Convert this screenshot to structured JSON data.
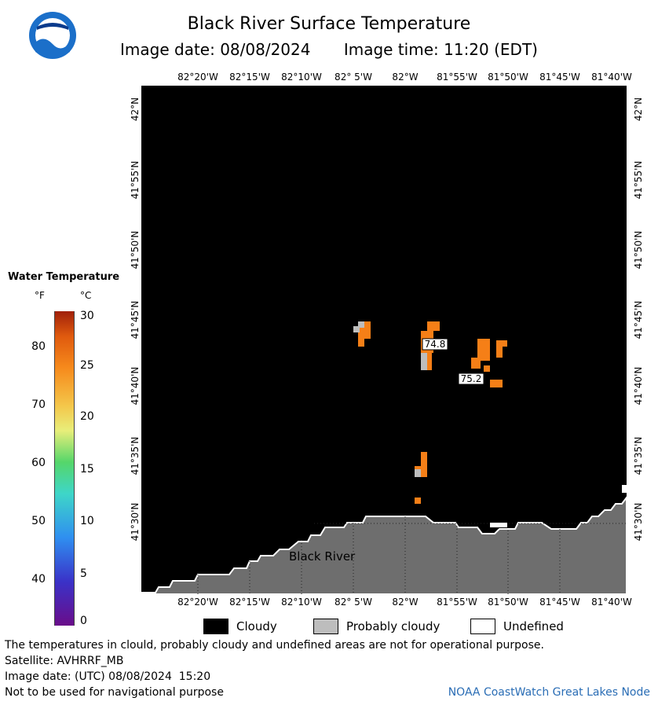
{
  "header": {
    "title": "Black River Surface Temperature",
    "image_date": "Image date: 08/08/2024",
    "image_time": "Image time: 11:20 (EDT)"
  },
  "logo": {
    "text": "NOAA"
  },
  "axes": {
    "lon_labels": [
      "82°20'W",
      "82°15'W",
      "82°10'W",
      "82° 5'W",
      "82°W",
      "81°55'W",
      "81°50'W",
      "81°45'W",
      "81°40'W"
    ],
    "lat_labels": [
      "42°N",
      "41°55'N",
      "41°50'N",
      "41°45'N",
      "41°40'N",
      "41°35'N",
      "41°30'N"
    ]
  },
  "map": {
    "water_labels": [
      "74.8",
      "75.2"
    ],
    "city": "Black River"
  },
  "legend": {
    "title": "Water Temperature",
    "unit_f": "°F",
    "unit_c": "°C",
    "ticks_f": [
      "80",
      "70",
      "60",
      "50",
      "40"
    ],
    "ticks_c": [
      "30",
      "25",
      "20",
      "15",
      "10",
      "5",
      "0"
    ],
    "colors": [
      "#6a0d8a",
      "#3a32c8",
      "#2f8ff0",
      "#3ed6c8",
      "#55d66a",
      "#e8ee7a",
      "#f4c64a",
      "#f68a1c",
      "#e05a0e",
      "#a0200a"
    ]
  },
  "key": {
    "cloudy": "Cloudy",
    "probably_cloudy": "Probably cloudy",
    "undefined": "Undefined",
    "colors": {
      "cloudy": "#000000",
      "probably_cloudy": "#bdbdbd",
      "undefined": "#ffffff"
    }
  },
  "notes": {
    "disclaimer": "The temperatures in clould, probably cloudy and undefined areas are not for operational purpose.",
    "satellite": "Satellite: AVHRRF_MB",
    "utc_date": "Image date: (UTC) 08/08/2024  15:20",
    "navigation": "Not to be used for navigational purpose",
    "credit": "NOAA CoastWatch Great Lakes Node"
  },
  "colors": {
    "water_pixel": "#f57f17",
    "land": "#6e6e6e",
    "cloud_grey": "#bdbdbd"
  }
}
